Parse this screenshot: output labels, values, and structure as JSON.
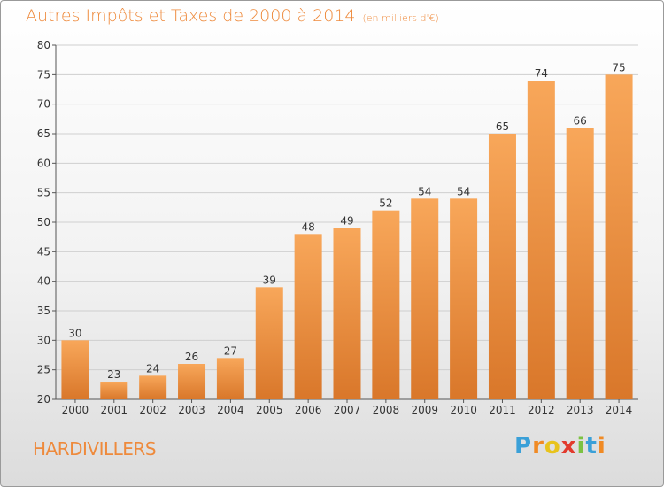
{
  "header": {
    "title": "Autres Impôts et Taxes de 2000 à 2014",
    "subtitle": "(en milliers d'€)"
  },
  "footer": {
    "place": "HARDIVILLERS",
    "logo": {
      "letters": [
        "P",
        "r",
        "o",
        "x",
        "i",
        "t",
        "i"
      ],
      "colors": [
        "#3aa0d8",
        "#f08a24",
        "#e8c31c",
        "#e23b2e",
        "#7cc242",
        "#3aa0d8",
        "#f08a24"
      ]
    }
  },
  "colors": {
    "bar_light": "#f8a75a",
    "bar_dark": "#d9772a",
    "title": "#ee8a3c",
    "axis": "#555555",
    "grid": "#cfcfcf"
  },
  "chart_data": {
    "type": "bar",
    "title": "Autres Impôts et Taxes de 2000 à 2014",
    "subtitle": "(en milliers d'€)",
    "categories": [
      "2000",
      "2001",
      "2002",
      "2003",
      "2004",
      "2005",
      "2006",
      "2007",
      "2008",
      "2009",
      "2010",
      "2011",
      "2012",
      "2013",
      "2014"
    ],
    "values": [
      30,
      23,
      24,
      26,
      27,
      39,
      48,
      49,
      52,
      54,
      54,
      65,
      74,
      66,
      75
    ],
    "ylim": [
      20,
      80
    ],
    "yticks": [
      20,
      25,
      30,
      35,
      40,
      45,
      50,
      55,
      60,
      65,
      70,
      75,
      80
    ],
    "grid": true,
    "data_labels": true
  }
}
